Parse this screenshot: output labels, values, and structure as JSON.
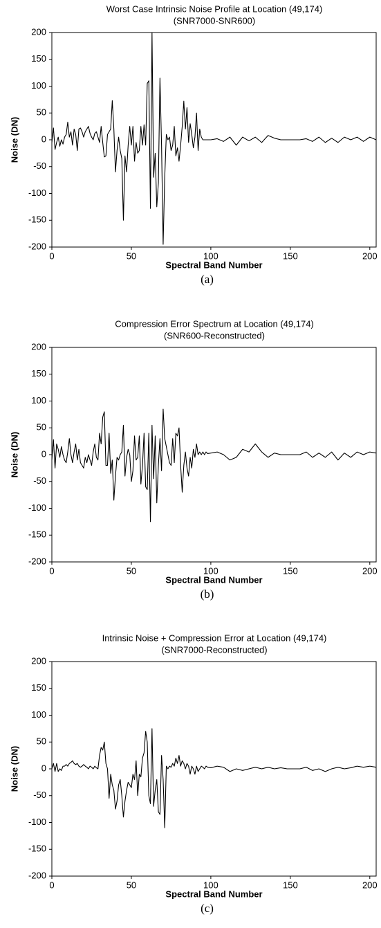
{
  "chart_data": [
    {
      "type": "line",
      "title": "Worst Case Intrinsic Noise Profile at Location (49,174)",
      "subtitle": "(SNR7000-SNR600)",
      "caption": "(a)",
      "x_label": "Spectral Band Number",
      "y_label": "Noise (DN)",
      "color": "#000000",
      "xlim": [
        0,
        204
      ],
      "xticks": [
        0,
        50,
        100,
        150,
        200
      ],
      "ylim": [
        -200,
        200
      ],
      "yticks": [
        -200,
        -150,
        -100,
        -50,
        0,
        50,
        100,
        150,
        200
      ],
      "x": [
        0,
        1,
        2,
        3,
        4,
        5,
        6,
        7,
        8,
        9,
        10,
        11,
        12,
        13,
        14,
        15,
        16,
        17,
        18,
        19,
        20,
        21,
        22,
        23,
        24,
        25,
        26,
        27,
        28,
        29,
        30,
        31,
        32,
        33,
        34,
        35,
        36,
        37,
        38,
        39,
        40,
        41,
        42,
        43,
        44,
        45,
        46,
        47,
        48,
        49,
        50,
        51,
        52,
        53,
        54,
        55,
        56,
        57,
        58,
        59,
        60,
        61,
        62,
        63,
        64,
        65,
        66,
        67,
        68,
        69,
        70,
        71,
        72,
        73,
        74,
        75,
        76,
        77,
        78,
        79,
        80,
        81,
        82,
        83,
        84,
        85,
        86,
        87,
        88,
        89,
        90,
        91,
        92,
        93,
        94,
        95,
        96,
        97,
        98,
        100,
        104,
        108,
        112,
        116,
        120,
        124,
        128,
        132,
        136,
        140,
        144,
        148,
        152,
        156,
        160,
        164,
        168,
        172,
        176,
        180,
        184,
        188,
        192,
        196,
        200,
        204
      ],
      "values": [
        -5,
        22,
        -18,
        -5,
        5,
        -12,
        0,
        -8,
        5,
        10,
        33,
        5,
        15,
        -10,
        20,
        10,
        -20,
        20,
        22,
        15,
        5,
        15,
        20,
        25,
        12,
        5,
        0,
        12,
        15,
        5,
        -5,
        25,
        -5,
        -32,
        -30,
        10,
        15,
        20,
        73,
        20,
        -60,
        -20,
        5,
        -20,
        -35,
        -150,
        -30,
        -60,
        -10,
        25,
        -10,
        25,
        -40,
        -5,
        -25,
        -20,
        25,
        -10,
        28,
        -10,
        105,
        110,
        -128,
        200,
        -70,
        -25,
        -125,
        -80,
        115,
        -10,
        -195,
        -70,
        10,
        0,
        5,
        -20,
        -10,
        25,
        -30,
        -15,
        -40,
        -10,
        25,
        72,
        20,
        60,
        -5,
        30,
        10,
        -15,
        5,
        50,
        -20,
        20,
        5,
        0,
        0,
        0,
        0,
        0,
        2,
        -3,
        5,
        -10,
        5,
        -2,
        5,
        -5,
        8,
        3,
        0,
        0,
        0,
        0,
        2,
        -3,
        5,
        -5,
        3,
        -5,
        5,
        0,
        5,
        -3,
        5,
        0
      ]
    },
    {
      "type": "line",
      "title": "Compression Error Spectrum at Location (49,174)",
      "subtitle": "(SNR600-Reconstructed)",
      "caption": "(b)",
      "x_label": "Spectral Band Number",
      "y_label": "Noise (DN)",
      "color": "#000000",
      "xlim": [
        0,
        204
      ],
      "xticks": [
        0,
        50,
        100,
        150,
        200
      ],
      "ylim": [
        -200,
        200
      ],
      "yticks": [
        -200,
        -150,
        -100,
        -50,
        0,
        50,
        100,
        150,
        200
      ],
      "x": [
        0,
        1,
        2,
        3,
        4,
        5,
        6,
        7,
        8,
        9,
        10,
        11,
        12,
        13,
        14,
        15,
        16,
        17,
        18,
        19,
        20,
        21,
        22,
        23,
        24,
        25,
        26,
        27,
        28,
        29,
        30,
        31,
        32,
        33,
        34,
        35,
        36,
        37,
        38,
        39,
        40,
        41,
        42,
        43,
        44,
        45,
        46,
        47,
        48,
        49,
        50,
        51,
        52,
        53,
        54,
        55,
        56,
        57,
        58,
        59,
        60,
        61,
        62,
        63,
        64,
        65,
        66,
        67,
        68,
        69,
        70,
        71,
        72,
        73,
        74,
        75,
        76,
        77,
        78,
        79,
        80,
        81,
        82,
        83,
        84,
        85,
        86,
        87,
        88,
        89,
        90,
        91,
        92,
        93,
        94,
        95,
        96,
        97,
        98,
        100,
        104,
        108,
        112,
        116,
        120,
        124,
        128,
        132,
        136,
        140,
        144,
        148,
        152,
        156,
        160,
        164,
        168,
        172,
        176,
        180,
        184,
        188,
        192,
        196,
        200,
        204
      ],
      "values": [
        -10,
        28,
        -25,
        20,
        10,
        -5,
        15,
        0,
        -10,
        -15,
        5,
        30,
        0,
        -15,
        5,
        20,
        -10,
        10,
        -15,
        -20,
        -25,
        -5,
        -15,
        0,
        -10,
        -20,
        5,
        20,
        -5,
        -10,
        40,
        20,
        70,
        80,
        -20,
        -20,
        40,
        -35,
        -10,
        -85,
        -40,
        -5,
        -10,
        0,
        5,
        55,
        -40,
        -5,
        10,
        0,
        -50,
        -30,
        35,
        -10,
        -5,
        35,
        -55,
        -20,
        40,
        -60,
        -65,
        40,
        -125,
        55,
        -45,
        35,
        -90,
        -20,
        30,
        -30,
        85,
        30,
        15,
        0,
        -15,
        -20,
        30,
        -15,
        40,
        35,
        50,
        -20,
        -70,
        -20,
        5,
        -25,
        -40,
        -5,
        -25,
        10,
        -5,
        20,
        0,
        5,
        0,
        5,
        0,
        5,
        2,
        3,
        5,
        0,
        -10,
        -5,
        10,
        5,
        20,
        5,
        -5,
        3,
        0,
        0,
        0,
        0,
        5,
        -5,
        3,
        -5,
        5,
        -10,
        3,
        -5,
        5,
        0,
        5,
        3
      ]
    },
    {
      "type": "line",
      "title": "Intrinsic Noise + Compression Error at Location (49,174)",
      "subtitle": "(SNR7000-Reconstructed)",
      "caption": "(c)",
      "x_label": "Spectral Band Number",
      "y_label": "Noise (DN)",
      "color": "#000000",
      "xlim": [
        0,
        204
      ],
      "xticks": [
        0,
        50,
        100,
        150,
        200
      ],
      "ylim": [
        -200,
        200
      ],
      "yticks": [
        -200,
        -150,
        -100,
        -50,
        0,
        50,
        100,
        150,
        200
      ],
      "x": [
        0,
        1,
        2,
        3,
        4,
        5,
        6,
        7,
        8,
        9,
        10,
        11,
        12,
        13,
        14,
        15,
        16,
        17,
        18,
        19,
        20,
        21,
        22,
        23,
        24,
        25,
        26,
        27,
        28,
        29,
        30,
        31,
        32,
        33,
        34,
        35,
        36,
        37,
        38,
        39,
        40,
        41,
        42,
        43,
        44,
        45,
        46,
        47,
        48,
        49,
        50,
        51,
        52,
        53,
        54,
        55,
        56,
        57,
        58,
        59,
        60,
        61,
        62,
        63,
        64,
        65,
        66,
        67,
        68,
        69,
        70,
        71,
        72,
        73,
        74,
        75,
        76,
        77,
        78,
        79,
        80,
        81,
        82,
        83,
        84,
        85,
        86,
        87,
        88,
        89,
        90,
        91,
        92,
        93,
        94,
        95,
        96,
        97,
        98,
        100,
        104,
        108,
        112,
        116,
        120,
        124,
        128,
        132,
        136,
        140,
        144,
        148,
        152,
        156,
        160,
        164,
        168,
        172,
        176,
        180,
        184,
        188,
        192,
        196,
        200,
        204
      ],
      "values": [
        0,
        10,
        -5,
        10,
        -5,
        0,
        -3,
        5,
        5,
        8,
        5,
        10,
        12,
        15,
        10,
        8,
        10,
        5,
        3,
        5,
        8,
        5,
        3,
        0,
        5,
        3,
        0,
        5,
        2,
        0,
        25,
        40,
        35,
        50,
        10,
        0,
        -55,
        -10,
        -30,
        -40,
        -75,
        -60,
        -30,
        -20,
        -50,
        -90,
        -60,
        -40,
        -25,
        -30,
        -35,
        -10,
        -20,
        15,
        -50,
        -10,
        -15,
        20,
        30,
        70,
        50,
        -50,
        -65,
        75,
        -70,
        -40,
        -20,
        -80,
        -85,
        25,
        -20,
        -110,
        5,
        0,
        5,
        3,
        10,
        5,
        20,
        10,
        25,
        5,
        15,
        10,
        0,
        10,
        5,
        -10,
        5,
        0,
        -10,
        5,
        -5,
        0,
        5,
        3,
        0,
        5,
        3,
        2,
        5,
        3,
        -5,
        0,
        -3,
        0,
        3,
        0,
        3,
        0,
        2,
        0,
        0,
        0,
        3,
        -3,
        0,
        -5,
        0,
        3,
        0,
        2,
        5,
        3,
        5,
        3
      ]
    }
  ]
}
